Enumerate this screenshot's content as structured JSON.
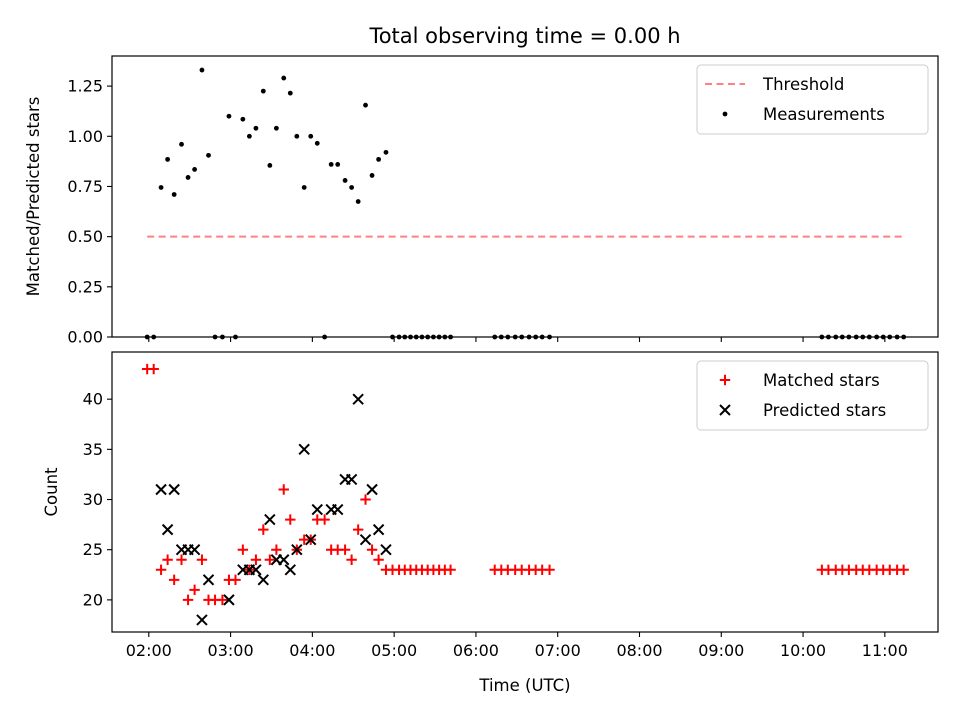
{
  "chart_data": [
    {
      "type": "scatter",
      "title": "Total observing time = 0.00 h",
      "xlabel": "",
      "ylabel": "Matched/Predicted stars",
      "xlim": [
        1.55,
        11.65
      ],
      "ylim": [
        0,
        1.4
      ],
      "yticks": [
        0,
        0.25,
        0.5,
        0.75,
        1.0,
        1.25
      ],
      "ytick_labels": [
        "0.00",
        "0.25",
        "0.50",
        "0.75",
        "1.00",
        "1.25"
      ],
      "xticks": [
        2,
        3,
        4,
        5,
        6,
        7,
        8,
        9,
        10,
        11
      ],
      "show_x_tick_labels": false,
      "legend_position": "upper right",
      "series": [
        {
          "name": "Threshold",
          "kind": "line",
          "color": "#ff8080",
          "dash": "dashed",
          "x": [
            1.98,
            11.25
          ],
          "y": [
            0.5,
            0.5
          ]
        },
        {
          "name": "Measurements",
          "kind": "points",
          "color": "#000000",
          "marker": "dot",
          "points": [
            [
              1.98,
              0.0
            ],
            [
              2.06,
              0.0
            ],
            [
              2.15,
              0.745
            ],
            [
              2.23,
              0.885
            ],
            [
              2.31,
              0.71
            ],
            [
              2.4,
              0.96
            ],
            [
              2.48,
              0.795
            ],
            [
              2.56,
              0.835
            ],
            [
              2.65,
              1.33
            ],
            [
              2.73,
              0.905
            ],
            [
              2.81,
              0.0
            ],
            [
              2.9,
              0.0
            ],
            [
              2.98,
              1.1
            ],
            [
              3.06,
              0.0
            ],
            [
              3.15,
              1.085
            ],
            [
              3.23,
              1.0
            ],
            [
              3.31,
              1.04
            ],
            [
              3.4,
              1.225
            ],
            [
              3.48,
              0.855
            ],
            [
              3.56,
              1.04
            ],
            [
              3.65,
              1.29
            ],
            [
              3.73,
              1.215
            ],
            [
              3.81,
              1.0
            ],
            [
              3.9,
              0.745
            ],
            [
              3.98,
              1.0
            ],
            [
              4.06,
              0.965
            ],
            [
              4.15,
              0.0
            ],
            [
              4.23,
              0.86
            ],
            [
              4.31,
              0.86
            ],
            [
              4.4,
              0.78
            ],
            [
              4.48,
              0.745
            ],
            [
              4.56,
              0.675
            ],
            [
              4.65,
              1.155
            ],
            [
              4.73,
              0.805
            ],
            [
              4.81,
              0.885
            ],
            [
              4.9,
              0.92
            ],
            [
              4.98,
              0.0
            ],
            [
              5.06,
              0.0
            ],
            [
              5.13,
              0.0
            ],
            [
              5.2,
              0.0
            ],
            [
              5.27,
              0.0
            ],
            [
              5.34,
              0.0
            ],
            [
              5.41,
              0.0
            ],
            [
              5.48,
              0.0
            ],
            [
              5.55,
              0.0
            ],
            [
              5.62,
              0.0
            ],
            [
              5.69,
              0.0
            ],
            [
              6.23,
              0.0
            ],
            [
              6.31,
              0.0
            ],
            [
              6.39,
              0.0
            ],
            [
              6.48,
              0.0
            ],
            [
              6.56,
              0.0
            ],
            [
              6.65,
              0.0
            ],
            [
              6.73,
              0.0
            ],
            [
              6.81,
              0.0
            ],
            [
              6.9,
              0.0
            ],
            [
              10.23,
              0.0
            ],
            [
              10.31,
              0.0
            ],
            [
              10.4,
              0.0
            ],
            [
              10.48,
              0.0
            ],
            [
              10.56,
              0.0
            ],
            [
              10.65,
              0.0
            ],
            [
              10.73,
              0.0
            ],
            [
              10.81,
              0.0
            ],
            [
              10.9,
              0.0
            ],
            [
              10.98,
              0.0
            ],
            [
              11.06,
              0.0
            ],
            [
              11.15,
              0.0
            ],
            [
              11.23,
              0.0
            ]
          ]
        }
      ]
    },
    {
      "type": "scatter",
      "title": "",
      "xlabel": "Time (UTC)",
      "ylabel": "Count",
      "xlim": [
        1.55,
        11.65
      ],
      "ylim": [
        16.8,
        44.7
      ],
      "yticks": [
        20,
        25,
        30,
        35,
        40
      ],
      "ytick_labels": [
        "20",
        "25",
        "30",
        "35",
        "40"
      ],
      "xticks": [
        2,
        3,
        4,
        5,
        6,
        7,
        8,
        9,
        10,
        11
      ],
      "xtick_labels": [
        "02:00",
        "03:00",
        "04:00",
        "05:00",
        "06:00",
        "07:00",
        "08:00",
        "09:00",
        "10:00",
        "11:00"
      ],
      "legend_position": "upper right",
      "series": [
        {
          "name": "Matched stars",
          "kind": "points",
          "color": "#ff0000",
          "marker": "plus",
          "points": [
            [
              1.98,
              43
            ],
            [
              2.06,
              43
            ],
            [
              2.15,
              23
            ],
            [
              2.23,
              24
            ],
            [
              2.31,
              22
            ],
            [
              2.4,
              24
            ],
            [
              2.48,
              20
            ],
            [
              2.56,
              21
            ],
            [
              2.65,
              24
            ],
            [
              2.73,
              20
            ],
            [
              2.81,
              20
            ],
            [
              2.9,
              20
            ],
            [
              2.98,
              22
            ],
            [
              3.06,
              22
            ],
            [
              3.15,
              25
            ],
            [
              3.23,
              23
            ],
            [
              3.31,
              24
            ],
            [
              3.4,
              27
            ],
            [
              3.48,
              24
            ],
            [
              3.56,
              25
            ],
            [
              3.65,
              31
            ],
            [
              3.73,
              28
            ],
            [
              3.81,
              25
            ],
            [
              3.9,
              26
            ],
            [
              3.98,
              26
            ],
            [
              4.06,
              28
            ],
            [
              4.15,
              28
            ],
            [
              4.23,
              25
            ],
            [
              4.31,
              25
            ],
            [
              4.4,
              25
            ],
            [
              4.48,
              24
            ],
            [
              4.56,
              27
            ],
            [
              4.65,
              30
            ],
            [
              4.73,
              25
            ],
            [
              4.81,
              24
            ],
            [
              4.9,
              23
            ],
            [
              4.98,
              23
            ],
            [
              5.06,
              23
            ],
            [
              5.13,
              23
            ],
            [
              5.2,
              23
            ],
            [
              5.27,
              23
            ],
            [
              5.34,
              23
            ],
            [
              5.41,
              23
            ],
            [
              5.48,
              23
            ],
            [
              5.55,
              23
            ],
            [
              5.62,
              23
            ],
            [
              5.69,
              23
            ],
            [
              6.23,
              23
            ],
            [
              6.31,
              23
            ],
            [
              6.39,
              23
            ],
            [
              6.48,
              23
            ],
            [
              6.56,
              23
            ],
            [
              6.65,
              23
            ],
            [
              6.73,
              23
            ],
            [
              6.81,
              23
            ],
            [
              6.9,
              23
            ],
            [
              10.23,
              23
            ],
            [
              10.31,
              23
            ],
            [
              10.4,
              23
            ],
            [
              10.48,
              23
            ],
            [
              10.56,
              23
            ],
            [
              10.65,
              23
            ],
            [
              10.73,
              23
            ],
            [
              10.81,
              23
            ],
            [
              10.9,
              23
            ],
            [
              10.98,
              23
            ],
            [
              11.06,
              23
            ],
            [
              11.15,
              23
            ],
            [
              11.23,
              23
            ]
          ]
        },
        {
          "name": "Predicted stars",
          "kind": "points",
          "color": "#000000",
          "marker": "x",
          "points": [
            [
              2.15,
              31
            ],
            [
              2.23,
              27
            ],
            [
              2.31,
              31
            ],
            [
              2.4,
              25
            ],
            [
              2.48,
              25
            ],
            [
              2.56,
              25
            ],
            [
              2.65,
              18
            ],
            [
              2.73,
              22
            ],
            [
              2.98,
              20
            ],
            [
              3.15,
              23
            ],
            [
              3.23,
              23
            ],
            [
              3.31,
              23
            ],
            [
              3.4,
              22
            ],
            [
              3.48,
              28
            ],
            [
              3.56,
              24
            ],
            [
              3.65,
              24
            ],
            [
              3.73,
              23
            ],
            [
              3.81,
              25
            ],
            [
              3.9,
              35
            ],
            [
              3.98,
              26
            ],
            [
              4.06,
              29
            ],
            [
              4.23,
              29
            ],
            [
              4.31,
              29
            ],
            [
              4.4,
              32
            ],
            [
              4.48,
              32
            ],
            [
              4.56,
              40
            ],
            [
              4.65,
              26
            ],
            [
              4.73,
              31
            ],
            [
              4.81,
              27
            ],
            [
              4.9,
              25
            ]
          ]
        }
      ]
    }
  ]
}
